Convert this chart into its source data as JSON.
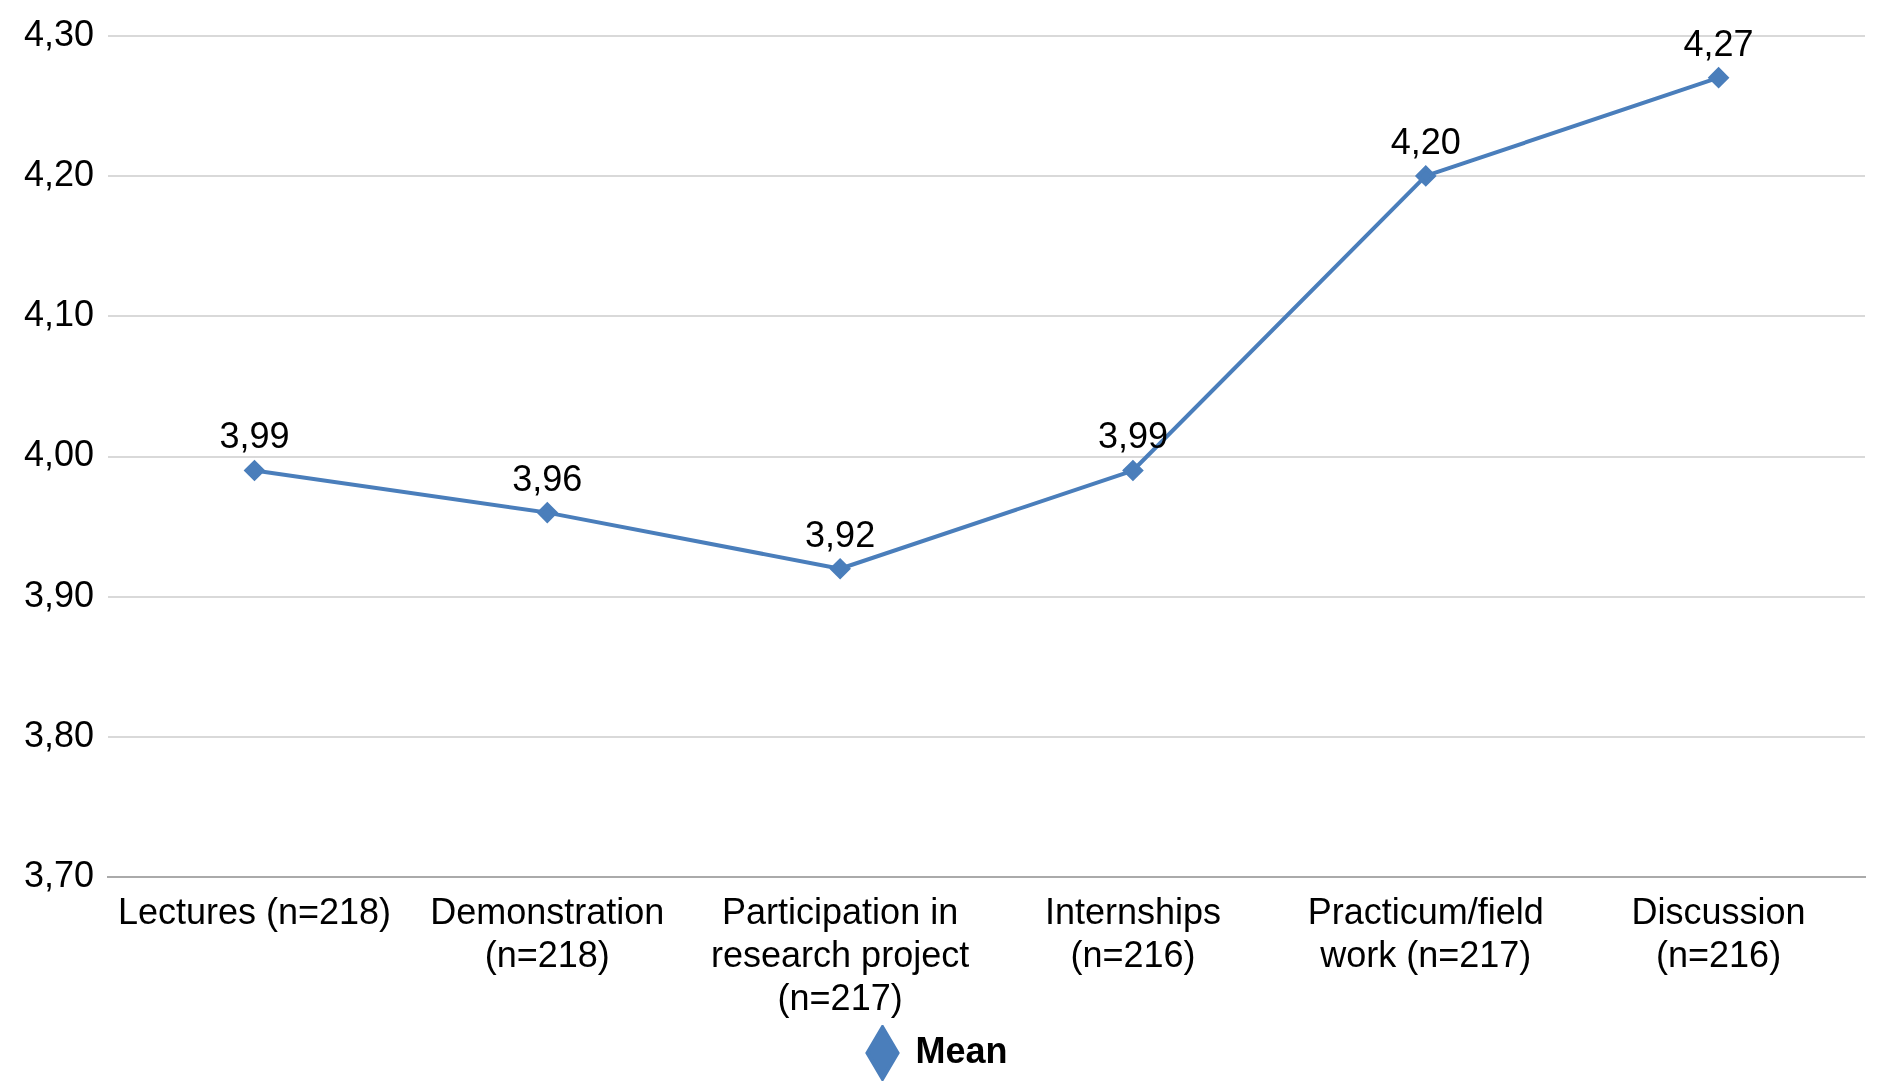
{
  "chart_data": {
    "type": "line",
    "categories": [
      "Lectures (n=218)",
      "Demonstration (n=218)",
      "Participation in research project (n=217)",
      "Internships (n=216)",
      "Practicum/field work (n=217)",
      "Discussion (n=216)"
    ],
    "series": [
      {
        "name": "Mean",
        "color": "#4a7ebb",
        "values": [
          3.99,
          3.96,
          3.92,
          3.99,
          4.2,
          4.27
        ],
        "value_labels": [
          "3,99",
          "3,96",
          "3,92",
          "3,99",
          "4,20",
          "4,27"
        ]
      }
    ],
    "ylim": [
      3.7,
      4.3
    ],
    "yticks": [
      {
        "value": 3.7,
        "label": "3,70"
      },
      {
        "value": 3.8,
        "label": "3,80"
      },
      {
        "value": 3.9,
        "label": "3,90"
      },
      {
        "value": 4.0,
        "label": "4,00"
      },
      {
        "value": 4.1,
        "label": "4,10"
      },
      {
        "value": 4.2,
        "label": "4,20"
      },
      {
        "value": 4.3,
        "label": "4,30"
      }
    ],
    "grid": "y",
    "legend": "bottom",
    "marker": "diamond",
    "line_style": "solid"
  }
}
